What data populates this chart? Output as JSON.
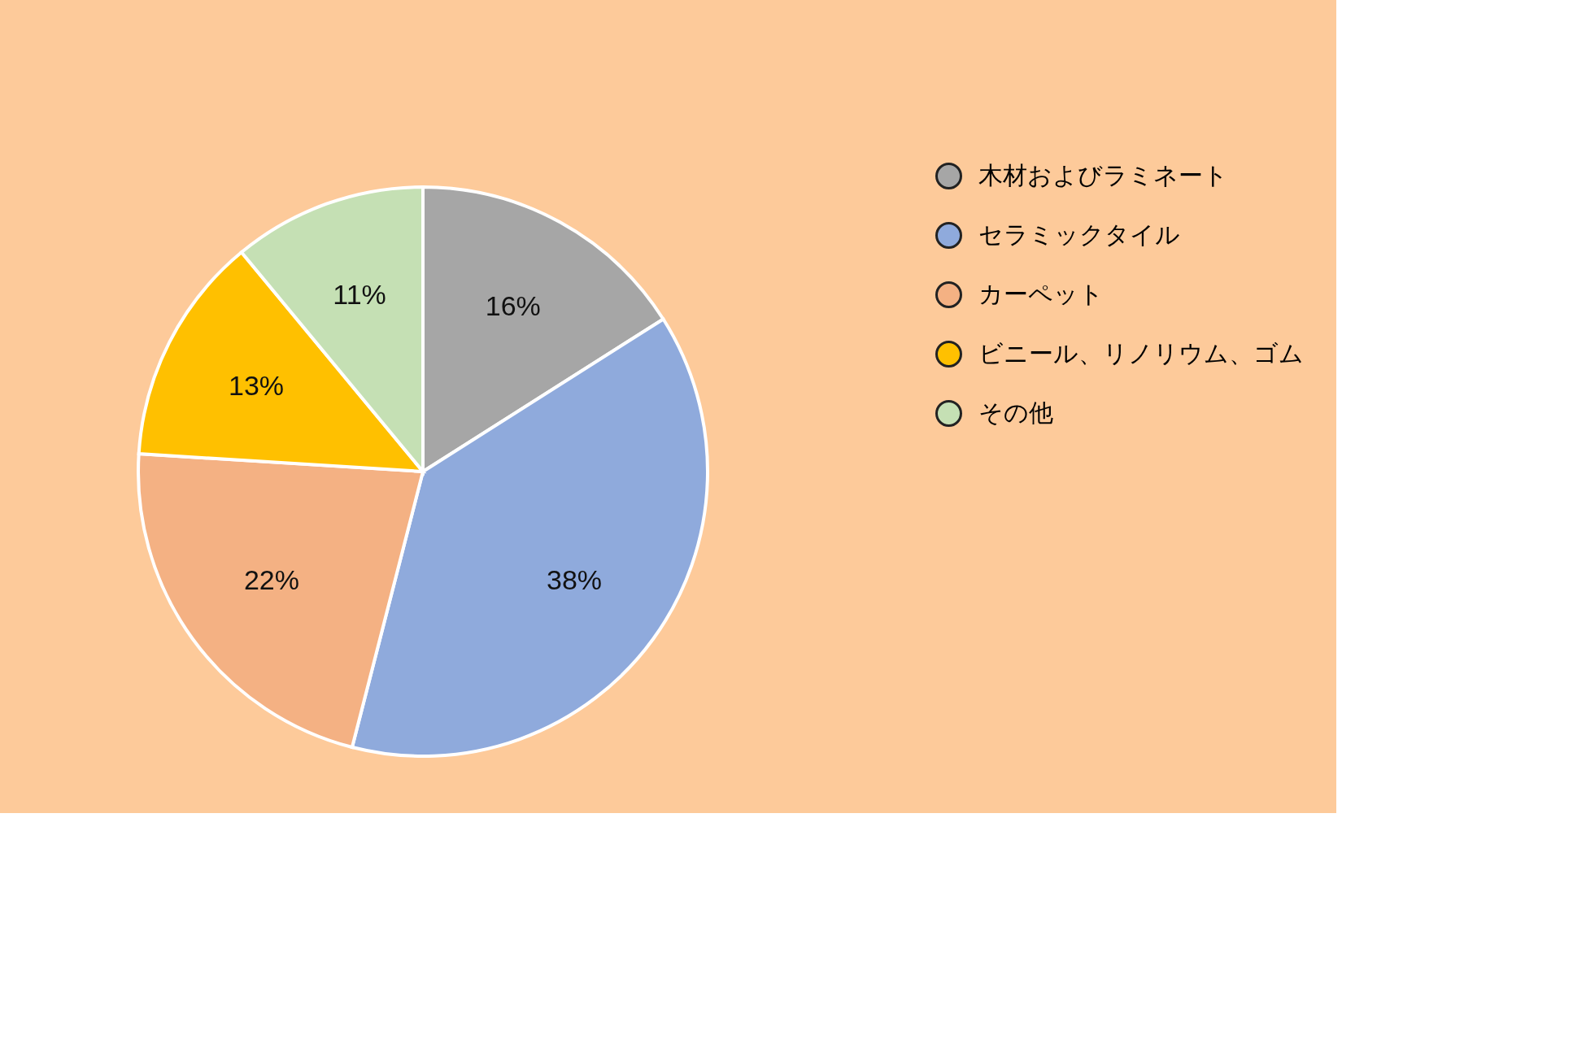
{
  "chart_data": {
    "type": "pie",
    "categories": [
      "木材およびラミネート",
      "セラミックタイル",
      "カーペット",
      "ビニール、リノリウム、ゴム",
      "その他"
    ],
    "values": [
      16,
      38,
      22,
      13,
      11
    ],
    "colors": [
      "#a6a6a6",
      "#8faadc",
      "#f4b183",
      "#ffc000",
      "#c5e0b4"
    ],
    "value_labels": [
      "16%",
      "38%",
      "22%",
      "13%",
      "11%"
    ],
    "legend": "right"
  }
}
